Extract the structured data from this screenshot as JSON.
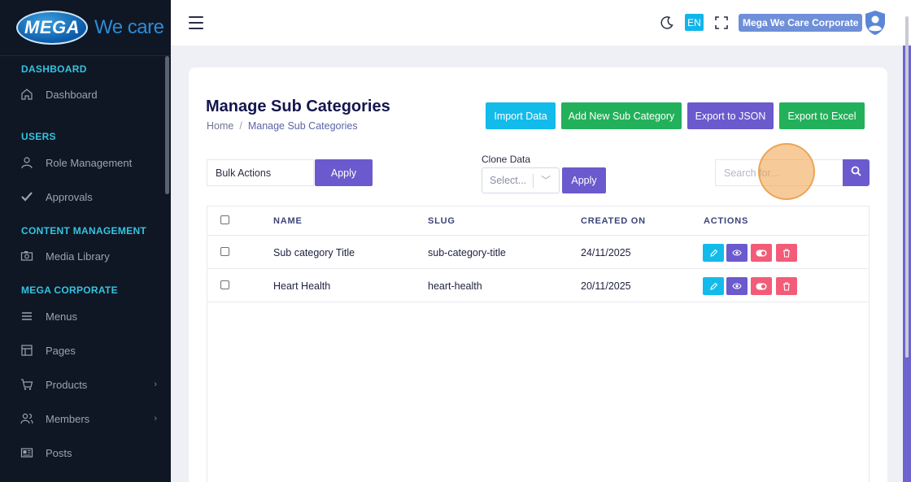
{
  "brand": {
    "logo_text": "MEGA",
    "tagline": "We care"
  },
  "sidebar": {
    "sections": [
      {
        "title": "DASHBOARD"
      },
      {
        "title": "USERS"
      },
      {
        "title": "CONTENT MANAGEMENT"
      },
      {
        "title": "MEGA CORPORATE"
      }
    ],
    "items": [
      {
        "label": "Dashboard",
        "icon": "home-icon"
      },
      {
        "label": "Role Management",
        "icon": "user-icon"
      },
      {
        "label": "Approvals",
        "icon": "check-icon"
      },
      {
        "label": "Media Library",
        "icon": "camera-icon"
      },
      {
        "label": "Menus",
        "icon": "menu-icon"
      },
      {
        "label": "Pages",
        "icon": "layout-icon"
      },
      {
        "label": "Products",
        "icon": "cart-icon",
        "has_submenu": true
      },
      {
        "label": "Members",
        "icon": "users-icon",
        "has_submenu": true
      },
      {
        "label": "Posts",
        "icon": "newspaper-icon"
      }
    ]
  },
  "topbar": {
    "language": "EN",
    "account_name": "Mega We Care Corporate"
  },
  "page": {
    "title": "Manage Sub Categories",
    "breadcrumb": {
      "home": "Home",
      "separator": "/",
      "current": "Manage Sub Categories"
    },
    "buttons": {
      "import": "Import Data",
      "add_new": "Add New Sub Category",
      "export_json": "Export to JSON",
      "export_excel": "Export to Excel"
    },
    "bulk_actions": {
      "value": "Bulk Actions",
      "apply": "Apply"
    },
    "clone": {
      "label": "Clone Data",
      "placeholder": "Select...",
      "apply": "Apply"
    },
    "search": {
      "placeholder": "Search for..."
    }
  },
  "table": {
    "columns": [
      "NAME",
      "SLUG",
      "CREATED ON",
      "ACTIONS"
    ],
    "rows": [
      {
        "name": "Sub category Title",
        "slug": "sub-category-title",
        "created_on": "24/11/2025"
      },
      {
        "name": "Heart Health",
        "slug": "heart-health",
        "created_on": "20/11/2025"
      }
    ],
    "actions": [
      "edit-icon",
      "view-icon",
      "toggle-icon",
      "delete-icon"
    ]
  },
  "colors": {
    "sidebar_bg": "#0f1724",
    "section_title": "#35c3e0",
    "primary_purple": "#6a5acd",
    "cyan": "#12bbea",
    "green": "#22b15a",
    "danger": "#f25c78"
  }
}
